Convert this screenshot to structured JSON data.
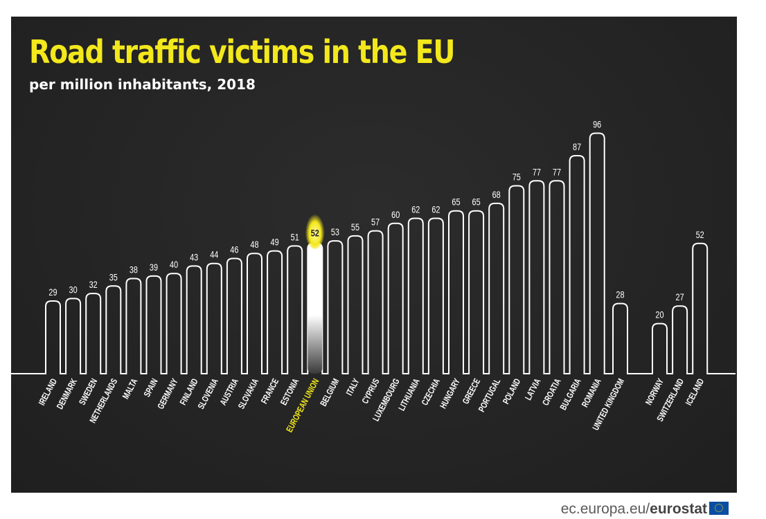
{
  "chart_data": {
    "type": "bar",
    "title": "Road traffic victims in the EU",
    "subtitle": "per million inhabitants, 2018",
    "unit": "per million inhabitants",
    "highlight": "EUROPEAN UNION",
    "highlight_color": "#f3e81c",
    "line_color": "#ffffff",
    "background_color": "#232323",
    "groups": [
      {
        "categories": [
          "IRELAND",
          "DENMARK",
          "SWEDEN",
          "NETHERLANDS",
          "MALTA",
          "SPAIN",
          "GERMANY",
          "FINLAND",
          "SLOVENIA",
          "AUSTRIA",
          "SLOVAKIA",
          "FRANCE",
          "ESTONIA",
          "EUROPEAN UNION",
          "BELGIUM",
          "ITALY",
          "CYPRUS",
          "LUXEMBOURG",
          "LITHUANIA",
          "CZECHIA",
          "HUNGARY",
          "GREECE",
          "PORTUGAL",
          "POLAND",
          "LATVIA",
          "CROATIA",
          "BULGARIA",
          "ROMANIA"
        ],
        "values": [
          29,
          30,
          32,
          35,
          38,
          39,
          40,
          43,
          44,
          46,
          48,
          49,
          51,
          52,
          53,
          55,
          57,
          60,
          62,
          62,
          65,
          65,
          68,
          75,
          77,
          77,
          87,
          96
        ]
      },
      {
        "categories": [
          "UNITED KINGDOM"
        ],
        "values": [
          28
        ]
      },
      {
        "categories": [
          "NORWAY",
          "SWITZERLAND",
          "ICELAND"
        ],
        "values": [
          20,
          27,
          52
        ]
      }
    ],
    "ylim": [
      0,
      100
    ]
  },
  "footer": {
    "site": "ec.europa.eu/",
    "brand": "eurostat",
    "flag_icon": "eu-flag-icon"
  }
}
